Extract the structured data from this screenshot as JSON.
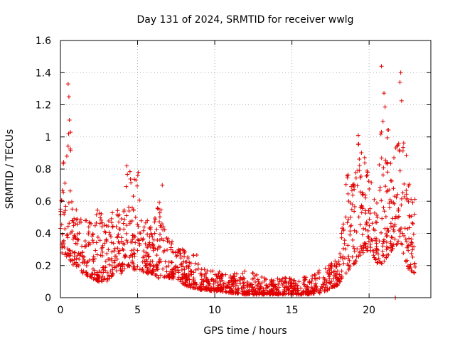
{
  "chart_data": {
    "type": "scatter",
    "title": "Day 131 of 2024, SRMTID for receiver wwlg",
    "xlabel": "GPS time / hours",
    "ylabel": "SRMTID / TECUs",
    "xlim": [
      0,
      24
    ],
    "ylim": [
      0,
      1.6
    ],
    "xticks": [
      0,
      5,
      10,
      15,
      20
    ],
    "yticks": [
      0,
      0.2,
      0.4,
      0.6,
      0.8,
      1,
      1.2,
      1.4,
      1.6
    ],
    "xtick_labels": [
      "0",
      "5",
      "10",
      "15",
      "20"
    ],
    "ytick_labels": [
      "0",
      "0.2",
      "0.4",
      "0.6",
      "0.8",
      "1",
      "1.2",
      "1.4",
      "1.6"
    ],
    "grid": true,
    "marker": "plus",
    "color": "#e00000",
    "envelope": [
      {
        "x": 0.0,
        "low": 0.28,
        "high": 0.65
      },
      {
        "x": 0.5,
        "low": 0.25,
        "high": 1.3
      },
      {
        "x": 1.0,
        "low": 0.18,
        "high": 0.55
      },
      {
        "x": 1.5,
        "low": 0.15,
        "high": 0.5
      },
      {
        "x": 2.0,
        "low": 0.12,
        "high": 0.5
      },
      {
        "x": 2.5,
        "low": 0.1,
        "high": 0.6
      },
      {
        "x": 3.0,
        "low": 0.1,
        "high": 0.45
      },
      {
        "x": 3.5,
        "low": 0.15,
        "high": 0.6
      },
      {
        "x": 4.0,
        "low": 0.15,
        "high": 0.5
      },
      {
        "x": 4.3,
        "low": 0.2,
        "high": 0.82
      },
      {
        "x": 5.0,
        "low": 0.15,
        "high": 0.78
      },
      {
        "x": 5.5,
        "low": 0.15,
        "high": 0.5
      },
      {
        "x": 6.0,
        "low": 0.15,
        "high": 0.45
      },
      {
        "x": 6.6,
        "low": 0.1,
        "high": 0.7
      },
      {
        "x": 7.0,
        "low": 0.12,
        "high": 0.4
      },
      {
        "x": 7.5,
        "low": 0.12,
        "high": 0.3
      },
      {
        "x": 8.0,
        "low": 0.08,
        "high": 0.3
      },
      {
        "x": 8.5,
        "low": 0.06,
        "high": 0.22
      },
      {
        "x": 8.8,
        "low": 0.06,
        "high": 0.38
      },
      {
        "x": 9.0,
        "low": 0.05,
        "high": 0.18
      },
      {
        "x": 10.0,
        "low": 0.04,
        "high": 0.17
      },
      {
        "x": 11.0,
        "low": 0.03,
        "high": 0.14
      },
      {
        "x": 12.0,
        "low": 0.02,
        "high": 0.18
      },
      {
        "x": 13.0,
        "low": 0.02,
        "high": 0.13
      },
      {
        "x": 14.0,
        "low": 0.02,
        "high": 0.12
      },
      {
        "x": 15.0,
        "low": 0.02,
        "high": 0.13
      },
      {
        "x": 16.0,
        "low": 0.02,
        "high": 0.13
      },
      {
        "x": 17.0,
        "low": 0.03,
        "high": 0.18
      },
      {
        "x": 18.0,
        "low": 0.08,
        "high": 0.25
      },
      {
        "x": 18.5,
        "low": 0.15,
        "high": 0.8
      },
      {
        "x": 19.0,
        "low": 0.2,
        "high": 0.7
      },
      {
        "x": 19.3,
        "low": 0.25,
        "high": 1.01
      },
      {
        "x": 20.0,
        "low": 0.3,
        "high": 0.78
      },
      {
        "x": 20.5,
        "low": 0.22,
        "high": 0.6
      },
      {
        "x": 20.8,
        "low": 0.2,
        "high": 1.44
      },
      {
        "x": 21.5,
        "low": 0.3,
        "high": 0.85
      },
      {
        "x": 22.0,
        "low": 0.35,
        "high": 1.4
      },
      {
        "x": 22.5,
        "low": 0.18,
        "high": 0.8
      },
      {
        "x": 23.0,
        "low": 0.15,
        "high": 0.7
      }
    ],
    "highlighted_points": [
      {
        "x": 0.5,
        "y": 1.33
      },
      {
        "x": 0.55,
        "y": 1.25
      },
      {
        "x": 4.3,
        "y": 0.82
      },
      {
        "x": 5.05,
        "y": 0.78
      },
      {
        "x": 6.6,
        "y": 0.7
      },
      {
        "x": 19.3,
        "y": 1.01
      },
      {
        "x": 20.8,
        "y": 1.44
      },
      {
        "x": 22.05,
        "y": 1.4
      },
      {
        "x": 21.7,
        "y": 0.0
      }
    ],
    "n_points": 1700
  }
}
